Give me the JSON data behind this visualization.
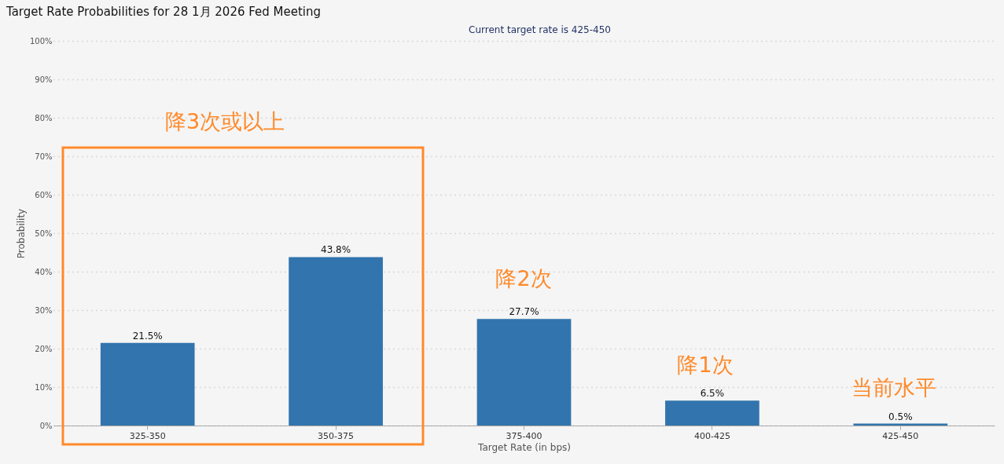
{
  "chart_data": {
    "type": "bar",
    "title": "Target Rate Probabilities for 28 1月 2026 Fed Meeting",
    "subtitle": "Current target rate is 425-450",
    "xlabel": "Target Rate (in bps)",
    "ylabel": "Probability",
    "categories": [
      "325-350",
      "350-375",
      "375-400",
      "400-425",
      "425-450"
    ],
    "values": [
      21.5,
      43.8,
      27.7,
      6.5,
      0.5
    ],
    "color": "#3274ad",
    "value_labels": [
      "21.5%",
      "43.8%",
      "27.7%",
      "6.5%",
      "0.5%"
    ],
    "ylim": [
      0,
      100
    ],
    "yticks": [
      {
        "value": 0,
        "label": "0%"
      },
      {
        "value": 10,
        "label": "10%"
      },
      {
        "value": 20,
        "label": "20%"
      },
      {
        "value": 30,
        "label": "30%"
      },
      {
        "value": 40,
        "label": "40%"
      },
      {
        "value": 50,
        "label": "50%"
      },
      {
        "value": 60,
        "label": "60%"
      },
      {
        "value": 70,
        "label": "70%"
      },
      {
        "value": 80,
        "label": "80%"
      },
      {
        "value": 90,
        "label": "90%"
      },
      {
        "value": 100,
        "label": "100%"
      }
    ],
    "grid": "y",
    "annotations": [
      "降3次或以上",
      "降2次",
      "降1次",
      "当前水平"
    ]
  }
}
